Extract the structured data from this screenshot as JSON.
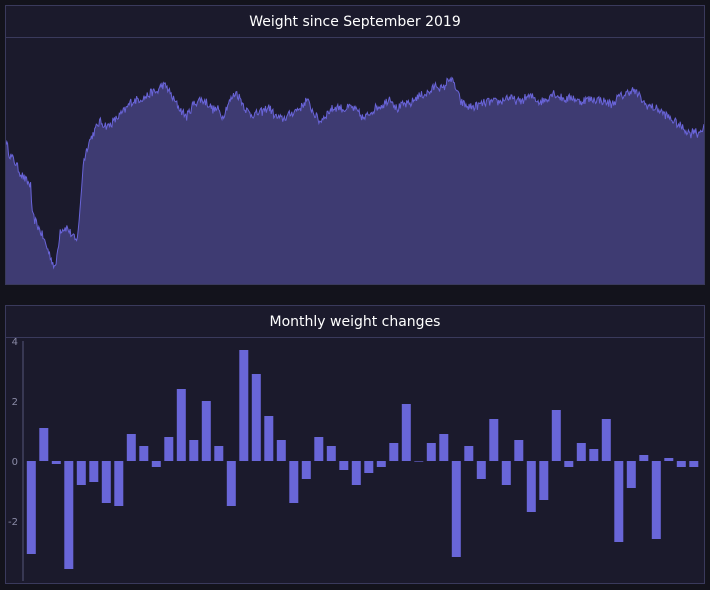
{
  "panels": {
    "weight_title": "Weight since September 2019",
    "monthly_title": "Monthly weight changes"
  },
  "colors": {
    "background": "#13131c",
    "panel": "#1b1a2c",
    "area_fill": "#3e3b72",
    "area_line": "#6964d8",
    "bar": "#6966d8",
    "axis_text": "#8a8aa6"
  },
  "chart_data": [
    {
      "type": "area",
      "title": "Weight since September 2019",
      "xlabel": "",
      "ylabel": "",
      "grid": false,
      "relative_level_keypoints": [
        [
          0,
          0.58
        ],
        [
          2,
          0.53
        ],
        [
          6,
          0.49
        ],
        [
          8,
          0.46
        ],
        [
          11,
          0.43
        ],
        [
          15,
          0.4
        ],
        [
          16,
          0.28
        ],
        [
          19,
          0.24
        ],
        [
          22,
          0.2
        ],
        [
          26,
          0.13
        ],
        [
          30,
          0.06
        ],
        [
          33,
          0.22
        ],
        [
          37,
          0.23
        ],
        [
          40,
          0.2
        ],
        [
          43,
          0.17
        ],
        [
          45,
          0.29
        ],
        [
          47,
          0.49
        ],
        [
          50,
          0.57
        ],
        [
          53,
          0.61
        ],
        [
          57,
          0.66
        ],
        [
          62,
          0.64
        ],
        [
          67,
          0.67
        ],
        [
          70,
          0.69
        ],
        [
          73,
          0.71
        ],
        [
          76,
          0.74
        ],
        [
          80,
          0.75
        ],
        [
          85,
          0.76
        ],
        [
          89,
          0.78
        ],
        [
          92,
          0.78
        ],
        [
          95,
          0.81
        ],
        [
          98,
          0.8
        ],
        [
          102,
          0.75
        ],
        [
          106,
          0.71
        ],
        [
          110,
          0.68
        ],
        [
          114,
          0.73
        ],
        [
          118,
          0.75
        ],
        [
          122,
          0.74
        ],
        [
          126,
          0.71
        ],
        [
          129,
          0.71
        ],
        [
          132,
          0.68
        ],
        [
          135,
          0.73
        ],
        [
          140,
          0.78
        ],
        [
          143,
          0.75
        ],
        [
          146,
          0.71
        ],
        [
          149,
          0.69
        ],
        [
          152,
          0.69
        ],
        [
          156,
          0.7
        ],
        [
          160,
          0.72
        ],
        [
          164,
          0.68
        ],
        [
          168,
          0.67
        ],
        [
          171,
          0.68
        ],
        [
          175,
          0.7
        ],
        [
          180,
          0.72
        ],
        [
          183,
          0.75
        ],
        [
          187,
          0.7
        ],
        [
          191,
          0.66
        ],
        [
          195,
          0.69
        ],
        [
          198,
          0.71
        ],
        [
          202,
          0.72
        ],
        [
          206,
          0.71
        ],
        [
          210,
          0.72
        ],
        [
          214,
          0.7
        ],
        [
          218,
          0.67
        ],
        [
          222,
          0.7
        ],
        [
          226,
          0.72
        ],
        [
          230,
          0.73
        ],
        [
          234,
          0.76
        ],
        [
          238,
          0.71
        ],
        [
          242,
          0.73
        ],
        [
          246,
          0.73
        ],
        [
          250,
          0.76
        ],
        [
          254,
          0.77
        ],
        [
          258,
          0.78
        ],
        [
          262,
          0.81
        ],
        [
          266,
          0.79
        ],
        [
          270,
          0.84
        ],
        [
          273,
          0.81
        ],
        [
          277,
          0.74
        ],
        [
          281,
          0.72
        ],
        [
          285,
          0.72
        ],
        [
          289,
          0.73
        ],
        [
          293,
          0.74
        ],
        [
          297,
          0.74
        ],
        [
          301,
          0.74
        ],
        [
          305,
          0.76
        ],
        [
          309,
          0.75
        ],
        [
          313,
          0.74
        ],
        [
          317,
          0.76
        ],
        [
          321,
          0.76
        ],
        [
          325,
          0.74
        ],
        [
          329,
          0.75
        ],
        [
          333,
          0.78
        ],
        [
          337,
          0.76
        ],
        [
          341,
          0.75
        ],
        [
          345,
          0.76
        ],
        [
          349,
          0.74
        ],
        [
          353,
          0.75
        ],
        [
          357,
          0.75
        ],
        [
          361,
          0.75
        ],
        [
          365,
          0.74
        ],
        [
          369,
          0.73
        ],
        [
          373,
          0.76
        ],
        [
          377,
          0.77
        ],
        [
          381,
          0.79
        ],
        [
          385,
          0.77
        ],
        [
          389,
          0.73
        ],
        [
          393,
          0.72
        ],
        [
          397,
          0.71
        ],
        [
          401,
          0.69
        ],
        [
          405,
          0.67
        ],
        [
          409,
          0.65
        ],
        [
          413,
          0.63
        ],
        [
          417,
          0.61
        ],
        [
          419,
          0.63
        ],
        [
          421,
          0.61
        ],
        [
          425,
          0.64
        ]
      ]
    },
    {
      "type": "bar",
      "title": "Monthly weight changes",
      "xlabel": "",
      "ylabel": "",
      "ylim": [
        -4,
        4
      ],
      "yticks": [
        4,
        2,
        0,
        -2
      ],
      "values": [
        -3.1,
        1.1,
        -0.1,
        -3.6,
        -0.8,
        -0.7,
        -1.4,
        -1.5,
        0.9,
        0.5,
        -0.2,
        0.8,
        2.4,
        0.7,
        2.0,
        0.5,
        -1.5,
        3.7,
        2.9,
        1.5,
        0.7,
        -1.4,
        -0.6,
        0.8,
        0.5,
        -0.3,
        -0.8,
        -0.4,
        -0.2,
        0.6,
        1.9,
        0.0,
        0.6,
        0.9,
        -3.2,
        0.5,
        -0.6,
        1.4,
        -0.8,
        0.7,
        -1.7,
        -1.3,
        1.7,
        -0.2,
        0.6,
        0.4,
        1.4,
        -2.7,
        -0.9,
        0.2,
        -2.6,
        0.1,
        -0.2,
        -0.2
      ]
    }
  ]
}
